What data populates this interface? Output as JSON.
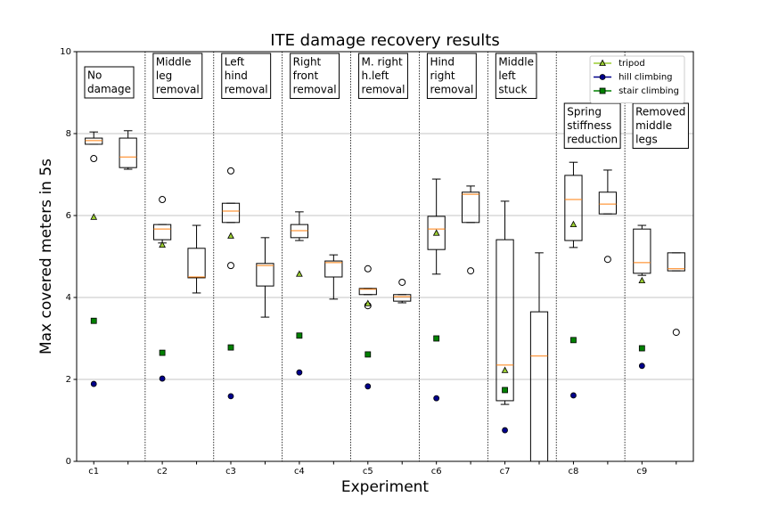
{
  "chart_data": {
    "type": "box",
    "title": "ITE damage recovery results",
    "xlabel": "Experiment",
    "ylabel": "Max covered meters in 5s",
    "xlim": [
      0.5,
      18.5
    ],
    "xticks": [
      {
        "value": 1,
        "label": "c1"
      },
      {
        "value": 3,
        "label": "c2"
      },
      {
        "value": 5,
        "label": "c3"
      },
      {
        "value": 7,
        "label": "c4"
      },
      {
        "value": 9,
        "label": "c5"
      },
      {
        "value": 11,
        "label": "c6"
      },
      {
        "value": 13,
        "label": "c7"
      },
      {
        "value": 15,
        "label": "c8"
      },
      {
        "value": 17,
        "label": "c9"
      }
    ],
    "xminorticks": [
      2,
      4,
      6,
      8,
      10,
      12,
      14,
      16,
      18
    ],
    "ylim": [
      0,
      10
    ],
    "yticks": [
      0,
      2,
      4,
      6,
      8,
      10
    ],
    "grid": "y",
    "box_color": "#000000",
    "median_color": "#ff7f0e",
    "boxes": [
      {
        "x": 1,
        "whislo": 7.74,
        "q1": 7.74,
        "med": 7.83,
        "q3": 7.89,
        "whishi": 8.04,
        "fliers": [
          7.39
        ]
      },
      {
        "x": 2,
        "whislo": 7.13,
        "q1": 7.17,
        "med": 7.43,
        "q3": 7.89,
        "whishi": 8.07,
        "fliers": []
      },
      {
        "x": 3,
        "whislo": 5.33,
        "q1": 5.41,
        "med": 5.67,
        "q3": 5.78,
        "whishi": 5.78,
        "fliers": [
          6.39
        ]
      },
      {
        "x": 4,
        "whislo": 4.11,
        "q1": 4.48,
        "med": 4.5,
        "q3": 5.2,
        "whishi": 5.76,
        "fliers": []
      },
      {
        "x": 5,
        "whislo": 5.83,
        "q1": 5.83,
        "med": 6.11,
        "q3": 6.3,
        "whishi": 6.3,
        "fliers": [
          7.09,
          4.78
        ]
      },
      {
        "x": 6,
        "whislo": 3.52,
        "q1": 4.28,
        "med": 4.78,
        "q3": 4.83,
        "whishi": 5.46,
        "fliers": []
      },
      {
        "x": 7,
        "whislo": 5.39,
        "q1": 5.46,
        "med": 5.63,
        "q3": 5.78,
        "whishi": 6.09,
        "fliers": []
      },
      {
        "x": 8,
        "whislo": 3.96,
        "q1": 4.5,
        "med": 4.85,
        "q3": 4.89,
        "whishi": 5.04,
        "fliers": []
      },
      {
        "x": 9,
        "whislo": 4.07,
        "q1": 4.07,
        "med": 4.2,
        "q3": 4.22,
        "whishi": 4.22,
        "fliers": [
          4.7,
          3.8
        ]
      },
      {
        "x": 10,
        "whislo": 3.87,
        "q1": 3.91,
        "med": 4.02,
        "q3": 4.07,
        "whishi": 4.07,
        "fliers": [
          4.37
        ]
      },
      {
        "x": 11,
        "whislo": 4.57,
        "q1": 5.17,
        "med": 5.67,
        "q3": 5.98,
        "whishi": 6.89,
        "fliers": []
      },
      {
        "x": 12,
        "whislo": 5.83,
        "q1": 5.83,
        "med": 6.52,
        "q3": 6.57,
        "whishi": 6.72,
        "fliers": [
          4.65
        ]
      },
      {
        "x": 13,
        "whislo": 1.39,
        "q1": 1.48,
        "med": 2.35,
        "q3": 5.41,
        "whishi": 6.35,
        "fliers": []
      },
      {
        "x": 14,
        "whislo": 0,
        "q1": 0,
        "med": 2.57,
        "q3": 3.65,
        "whishi": 5.09,
        "fliers": []
      },
      {
        "x": 15,
        "whislo": 5.22,
        "q1": 5.39,
        "med": 6.39,
        "q3": 6.98,
        "whishi": 7.3,
        "fliers": []
      },
      {
        "x": 16,
        "whislo": 6.04,
        "q1": 6.04,
        "med": 6.28,
        "q3": 6.57,
        "whishi": 7.11,
        "fliers": [
          4.93
        ]
      },
      {
        "x": 17,
        "whislo": 4.54,
        "q1": 4.59,
        "med": 4.85,
        "q3": 5.67,
        "whishi": 5.76,
        "fliers": []
      },
      {
        "x": 18,
        "whislo": 4.65,
        "q1": 4.65,
        "med": 4.7,
        "q3": 5.09,
        "whishi": 5.09,
        "fliers": [
          3.15
        ]
      }
    ],
    "series": [
      {
        "name": "tripod",
        "color": "#9acd32",
        "marker": "triangle",
        "x": [
          1,
          3,
          5,
          7,
          9,
          11,
          13,
          15,
          17
        ],
        "values": [
          5.96,
          5.28,
          5.5,
          4.57,
          3.85,
          5.57,
          2.22,
          5.78,
          4.41
        ]
      },
      {
        "name": "hill climbing",
        "color": "#00008b",
        "marker": "circle",
        "x": [
          1,
          3,
          5,
          7,
          9,
          11,
          13,
          15,
          17
        ],
        "values": [
          1.89,
          2.02,
          1.59,
          2.17,
          1.83,
          1.54,
          0.76,
          1.61,
          2.33
        ]
      },
      {
        "name": "stair climbing",
        "color": "#008000",
        "marker": "square",
        "x": [
          1,
          3,
          5,
          7,
          9,
          11,
          13,
          15,
          17
        ],
        "values": [
          3.43,
          2.65,
          2.78,
          3.07,
          2.61,
          3.0,
          1.74,
          2.96,
          2.76
        ]
      }
    ],
    "legend": "upper right",
    "annotations": [
      {
        "lines": [
          "No",
          "damage"
        ]
      },
      {
        "lines": [
          "Middle",
          "leg",
          "removal"
        ]
      },
      {
        "lines": [
          "Left",
          "hind",
          "removal"
        ]
      },
      {
        "lines": [
          "Right",
          "front",
          "removal"
        ]
      },
      {
        "lines": [
          "M. right",
          "h.left",
          "removal"
        ]
      },
      {
        "lines": [
          "Hind",
          "right",
          "removal"
        ]
      },
      {
        "lines": [
          "Middle",
          "left",
          "stuck"
        ]
      },
      {
        "lines": [
          "Spring",
          "stiffness",
          "reduction"
        ]
      },
      {
        "lines": [
          "Removed",
          "middle",
          "legs"
        ]
      }
    ]
  }
}
